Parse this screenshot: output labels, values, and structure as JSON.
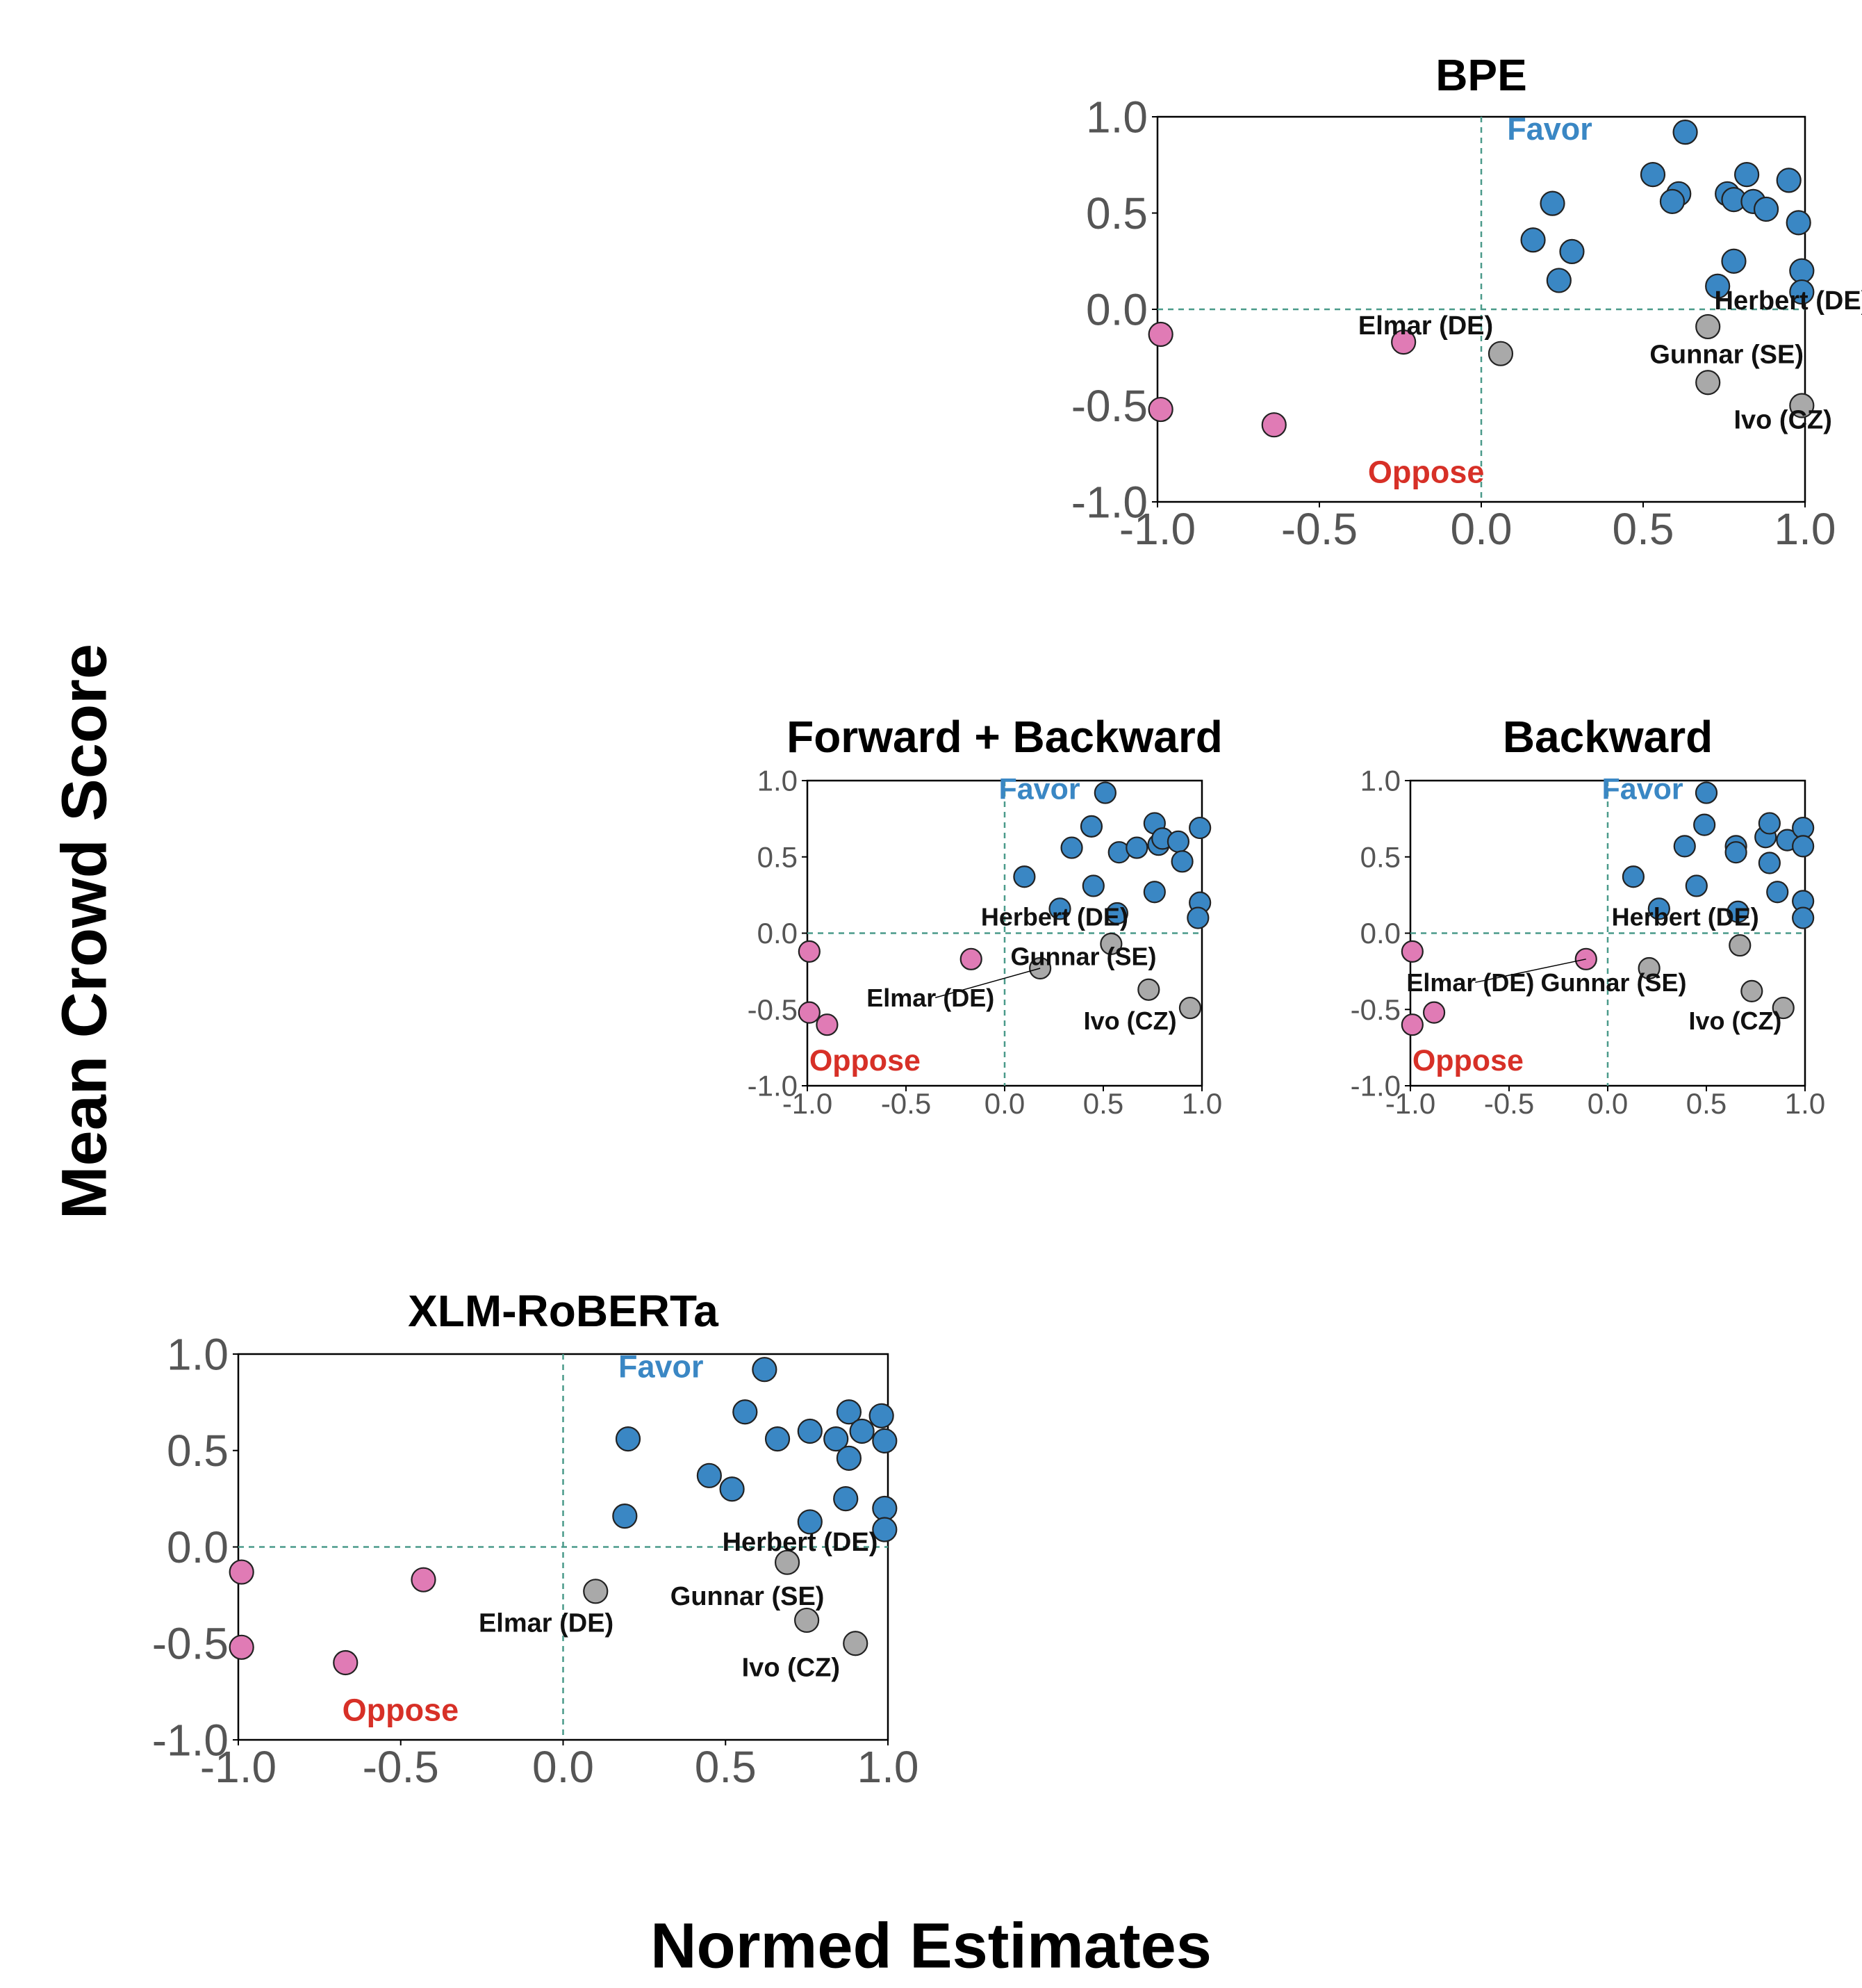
{
  "figure": {
    "ylabel": "Mean Crowd Score",
    "xlabel": "Normed Estimates"
  },
  "colors": {
    "favor": "#3a87c4",
    "oppose": "#e07bb5",
    "neutral": "#a9a9a9",
    "favor_text": "#3a87c4",
    "oppose_text": "#d73027",
    "refline": "#4a9a8a"
  },
  "chart_data": [
    {
      "type": "scatter",
      "title": "BPE",
      "xlim": [
        -1.0,
        1.0
      ],
      "ylim": [
        -1.0,
        1.0
      ],
      "xticks": [
        "-1.0",
        "-0.5",
        "0.0",
        "0.5",
        "1.0"
      ],
      "yticks": [
        "-1.0",
        "-0.5",
        "0.0",
        "0.5",
        "1.0"
      ],
      "quadrant_labels": {
        "favor": "Favor",
        "oppose": "Oppose"
      },
      "points": {
        "favor": [
          [
            0.63,
            0.92
          ],
          [
            0.53,
            0.7
          ],
          [
            0.61,
            0.6
          ],
          [
            0.59,
            0.56
          ],
          [
            0.82,
            0.7
          ],
          [
            0.76,
            0.6
          ],
          [
            0.78,
            0.57
          ],
          [
            0.84,
            0.56
          ],
          [
            0.88,
            0.52
          ],
          [
            0.95,
            0.67
          ],
          [
            0.98,
            0.45
          ],
          [
            0.22,
            0.55
          ],
          [
            0.16,
            0.36
          ],
          [
            0.28,
            0.3
          ],
          [
            0.24,
            0.15
          ],
          [
            0.78,
            0.25
          ],
          [
            0.73,
            0.12
          ],
          [
            0.99,
            0.2
          ],
          [
            0.99,
            0.09
          ]
        ],
        "oppose": [
          [
            -0.99,
            -0.13
          ],
          [
            -0.99,
            -0.52
          ],
          [
            -0.64,
            -0.6
          ],
          [
            -0.24,
            -0.17
          ]
        ],
        "neutral": [
          [
            0.06,
            -0.23
          ],
          [
            0.7,
            -0.09
          ],
          [
            0.7,
            -0.38
          ],
          [
            0.99,
            -0.5
          ]
        ]
      },
      "annotations": [
        {
          "text": "Herbert (DE)",
          "x": 0.7,
          "y": -0.09
        },
        {
          "text": "Elmar (DE)",
          "x": 0.06,
          "y": -0.23
        },
        {
          "text": "Gunnar (SE)",
          "x": 0.7,
          "y": -0.38
        },
        {
          "text": "Ivo (CZ)",
          "x": 0.99,
          "y": -0.5
        }
      ]
    },
    {
      "type": "scatter",
      "title": "Forward + Backward",
      "xlim": [
        -1.0,
        1.0
      ],
      "ylim": [
        -1.0,
        1.0
      ],
      "xticks": [
        "-1.0",
        "-0.5",
        "0.0",
        "0.5",
        "1.0"
      ],
      "yticks": [
        "-1.0",
        "-0.5",
        "0.0",
        "0.5",
        "1.0"
      ],
      "quadrant_labels": {
        "favor": "Favor",
        "oppose": "Oppose"
      },
      "points": {
        "favor": [
          [
            0.51,
            0.92
          ],
          [
            0.44,
            0.7
          ],
          [
            0.76,
            0.72
          ],
          [
            0.99,
            0.69
          ],
          [
            0.34,
            0.56
          ],
          [
            0.58,
            0.53
          ],
          [
            0.67,
            0.56
          ],
          [
            0.78,
            0.58
          ],
          [
            0.8,
            0.62
          ],
          [
            0.88,
            0.6
          ],
          [
            0.9,
            0.47
          ],
          [
            0.1,
            0.37
          ],
          [
            0.45,
            0.31
          ],
          [
            0.76,
            0.27
          ],
          [
            0.28,
            0.16
          ],
          [
            0.57,
            0.13
          ],
          [
            0.99,
            0.2
          ],
          [
            0.98,
            0.1
          ]
        ],
        "oppose": [
          [
            -0.99,
            -0.12
          ],
          [
            -0.99,
            -0.52
          ],
          [
            -0.9,
            -0.6
          ],
          [
            -0.17,
            -0.17
          ]
        ],
        "neutral": [
          [
            0.18,
            -0.23
          ],
          [
            0.54,
            -0.07
          ],
          [
            0.73,
            -0.37
          ],
          [
            0.94,
            -0.49
          ]
        ]
      },
      "annotations": [
        {
          "text": "Herbert (DE)",
          "x": 0.54,
          "y": -0.07
        },
        {
          "text": "Gunnar (SE)",
          "x": 0.73,
          "y": -0.37
        },
        {
          "text": "Elmar (DE)",
          "x": 0.18,
          "y": -0.23
        },
        {
          "text": "Ivo (CZ)",
          "x": 0.94,
          "y": -0.49
        }
      ]
    },
    {
      "type": "scatter",
      "title": "Backward",
      "xlim": [
        -1.0,
        1.0
      ],
      "ylim": [
        -1.0,
        1.0
      ],
      "xticks": [
        "-1.0",
        "-0.5",
        "0.0",
        "0.5",
        "1.0"
      ],
      "yticks": [
        "-1.0",
        "-0.5",
        "0.0",
        "0.5",
        "1.0"
      ],
      "quadrant_labels": {
        "favor": "Favor",
        "oppose": "Oppose"
      },
      "points": {
        "favor": [
          [
            0.5,
            0.92
          ],
          [
            0.49,
            0.71
          ],
          [
            0.39,
            0.57
          ],
          [
            0.65,
            0.57
          ],
          [
            0.65,
            0.53
          ],
          [
            0.8,
            0.63
          ],
          [
            0.82,
            0.72
          ],
          [
            0.91,
            0.61
          ],
          [
            0.99,
            0.69
          ],
          [
            0.99,
            0.57
          ],
          [
            0.82,
            0.46
          ],
          [
            0.13,
            0.37
          ],
          [
            0.45,
            0.31
          ],
          [
            0.86,
            0.27
          ],
          [
            0.26,
            0.16
          ],
          [
            0.66,
            0.14
          ],
          [
            0.99,
            0.21
          ],
          [
            0.99,
            0.1
          ]
        ],
        "oppose": [
          [
            -0.99,
            -0.12
          ],
          [
            -0.99,
            -0.6
          ],
          [
            -0.88,
            -0.52
          ],
          [
            -0.11,
            -0.17
          ]
        ],
        "neutral": [
          [
            0.21,
            -0.23
          ],
          [
            0.67,
            -0.08
          ],
          [
            0.73,
            -0.38
          ],
          [
            0.89,
            -0.49
          ]
        ]
      },
      "annotations": [
        {
          "text": "Herbert (DE)",
          "x": 0.67,
          "y": -0.08
        },
        {
          "text": "Elmar (DE)",
          "x": -0.11,
          "y": -0.17
        },
        {
          "text": "Gunnar (SE)",
          "x": 0.21,
          "y": -0.23
        },
        {
          "text": "Ivo (CZ)",
          "x": 0.89,
          "y": -0.49
        }
      ]
    },
    {
      "type": "scatter",
      "title": "XLM-RoBERTa",
      "xlim": [
        -1.0,
        1.0
      ],
      "ylim": [
        -1.0,
        1.0
      ],
      "xticks": [
        "-1.0",
        "-0.5",
        "0.0",
        "0.5",
        "1.0"
      ],
      "yticks": [
        "-1.0",
        "-0.5",
        "0.0",
        "0.5",
        "1.0"
      ],
      "quadrant_labels": {
        "favor": "Favor",
        "oppose": "Oppose"
      },
      "points": {
        "favor": [
          [
            0.62,
            0.92
          ],
          [
            0.56,
            0.7
          ],
          [
            0.66,
            0.56
          ],
          [
            0.76,
            0.6
          ],
          [
            0.84,
            0.56
          ],
          [
            0.88,
            0.7
          ],
          [
            0.92,
            0.6
          ],
          [
            0.98,
            0.68
          ],
          [
            0.99,
            0.55
          ],
          [
            0.88,
            0.46
          ],
          [
            0.2,
            0.56
          ],
          [
            0.45,
            0.37
          ],
          [
            0.52,
            0.3
          ],
          [
            0.87,
            0.25
          ],
          [
            0.19,
            0.16
          ],
          [
            0.76,
            0.13
          ],
          [
            0.99,
            0.2
          ],
          [
            0.99,
            0.09
          ]
        ],
        "oppose": [
          [
            -0.99,
            -0.13
          ],
          [
            -0.99,
            -0.52
          ],
          [
            -0.67,
            -0.6
          ],
          [
            -0.43,
            -0.17
          ]
        ],
        "neutral": [
          [
            0.1,
            -0.23
          ],
          [
            0.69,
            -0.08
          ],
          [
            0.75,
            -0.38
          ],
          [
            0.9,
            -0.5
          ]
        ]
      },
      "annotations": [
        {
          "text": "Herbert (DE)",
          "x": 0.69,
          "y": -0.08
        },
        {
          "text": "Elmar (DE)",
          "x": 0.1,
          "y": -0.23
        },
        {
          "text": "Gunnar (SE)",
          "x": 0.75,
          "y": -0.38
        },
        {
          "text": "Ivo (CZ)",
          "x": 0.9,
          "y": -0.5
        }
      ]
    }
  ]
}
